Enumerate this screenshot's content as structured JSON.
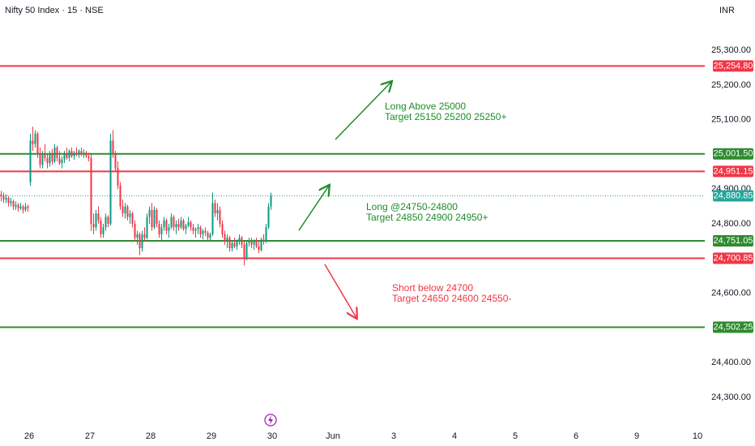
{
  "chart_data": {
    "type": "candlestick",
    "title": "Nifty 50 Index · 15 · NSE",
    "currency": "INR",
    "ylim": [
      24230,
      25445
    ],
    "xlim": [
      0,
      290
    ],
    "grid": true,
    "up_color": "#089981",
    "down_color": "#f23645",
    "yticks": [
      {
        "value": 25300,
        "label": "25,300.00"
      },
      {
        "value": 25200,
        "label": "25,200.00"
      },
      {
        "value": 25100,
        "label": "25,100.00"
      },
      {
        "value": 24900,
        "label": "24,900.00"
      },
      {
        "value": 24800,
        "label": "24,800.00"
      },
      {
        "value": 24600,
        "label": "24,600.00"
      },
      {
        "value": 24400,
        "label": "24,400.00"
      },
      {
        "value": 24300,
        "label": "24,300.00"
      }
    ],
    "xticks": [
      {
        "value": 12,
        "label": "26"
      },
      {
        "value": 37,
        "label": "27"
      },
      {
        "value": 62,
        "label": "28"
      },
      {
        "value": 87,
        "label": "29"
      },
      {
        "value": 112,
        "label": "30"
      },
      {
        "value": 137,
        "label": "Jun"
      },
      {
        "value": 162,
        "label": "3"
      },
      {
        "value": 187,
        "label": "4"
      },
      {
        "value": 212,
        "label": "5"
      },
      {
        "value": 237,
        "label": "6"
      },
      {
        "value": 262,
        "label": "9"
      },
      {
        "value": 287,
        "label": "10"
      }
    ],
    "levels": [
      {
        "value": 25254.8,
        "label": "25,254.80",
        "color": "#f23645"
      },
      {
        "value": 25001.5,
        "label": "25,001.50",
        "color": "#2e8b2e"
      },
      {
        "value": 24951.15,
        "label": "24,951.15",
        "color": "#f23645"
      },
      {
        "value": 24751.05,
        "label": "24,751.05",
        "color": "#2e8b2e"
      },
      {
        "value": 24700.85,
        "label": "24,700.85",
        "color": "#f23645"
      },
      {
        "value": 24502.25,
        "label": "24,502.25",
        "color": "#2e8b2e"
      }
    ],
    "last_price": {
      "value": 24880.85,
      "label": "24,880.85",
      "color": "#26a69a"
    },
    "annotations": [
      {
        "lines": [
          "Long Above 25000",
          "Target 25150 25200 25250+"
        ],
        "color": "#1e8c2a"
      },
      {
        "lines": [
          "Long @24750-24800",
          "Target 24850 24900 24950+"
        ],
        "color": "#1e8c2a"
      },
      {
        "lines": [
          "Short below 24700",
          "Target 24650 24600 24550-"
        ],
        "color": "#f23645"
      }
    ],
    "candles": [
      [
        24885,
        24895,
        24865,
        24880
      ],
      [
        24880,
        24890,
        24860,
        24870
      ],
      [
        24870,
        24885,
        24860,
        24875
      ],
      [
        24875,
        24880,
        24850,
        24860
      ],
      [
        24860,
        24875,
        24850,
        24865
      ],
      [
        24865,
        24870,
        24840,
        24850
      ],
      [
        24850,
        24865,
        24840,
        24855
      ],
      [
        24855,
        24860,
        24835,
        24845
      ],
      [
        24845,
        24860,
        24840,
        24850
      ],
      [
        24850,
        24855,
        24830,
        24840
      ],
      [
        24840,
        24860,
        24835,
        24850
      ],
      [
        24850,
        24855,
        24835,
        24845
      ],
      [
        24920,
        25060,
        24910,
        25040
      ],
      [
        25040,
        25080,
        25010,
        25030
      ],
      [
        25030,
        25070,
        25020,
        25060
      ],
      [
        25060,
        25065,
        24990,
        25000
      ],
      [
        25000,
        25020,
        24960,
        24970
      ],
      [
        24970,
        25010,
        24960,
        25000
      ],
      [
        25000,
        25030,
        24980,
        24990
      ],
      [
        24990,
        25000,
        24960,
        24975
      ],
      [
        24975,
        25010,
        24965,
        25000
      ],
      [
        25000,
        25015,
        24970,
        24980
      ],
      [
        24980,
        25030,
        24975,
        25020
      ],
      [
        25020,
        25025,
        24980,
        24990
      ],
      [
        24990,
        25010,
        24970,
        24975
      ],
      [
        24975,
        24995,
        24960,
        24985
      ],
      [
        24985,
        25010,
        24975,
        25000
      ],
      [
        25000,
        25020,
        24985,
        24990
      ],
      [
        24990,
        25015,
        24980,
        25010
      ],
      [
        25010,
        25020,
        24990,
        24995
      ],
      [
        24995,
        25010,
        24985,
        25005
      ],
      [
        25005,
        25020,
        24995,
        25000
      ],
      [
        25000,
        25015,
        24990,
        25010
      ],
      [
        25010,
        25020,
        24995,
        25000
      ],
      [
        25000,
        25015,
        24990,
        25005
      ],
      [
        25005,
        25010,
        24990,
        24995
      ],
      [
        24995,
        25005,
        24980,
        24990
      ],
      [
        24990,
        25000,
        24780,
        24800
      ],
      [
        24800,
        24830,
        24770,
        24790
      ],
      [
        24790,
        24840,
        24780,
        24830
      ],
      [
        24830,
        24850,
        24800,
        24810
      ],
      [
        24810,
        24820,
        24760,
        24770
      ],
      [
        24770,
        24800,
        24760,
        24790
      ],
      [
        24790,
        24830,
        24780,
        24820
      ],
      [
        24820,
        24825,
        24790,
        24800
      ],
      [
        24800,
        25060,
        24795,
        25040
      ],
      [
        25040,
        25070,
        24990,
        25000
      ],
      [
        25000,
        25010,
        24950,
        24960
      ],
      [
        24960,
        24980,
        24900,
        24910
      ],
      [
        24910,
        24920,
        24840,
        24850
      ],
      [
        24850,
        24870,
        24820,
        24830
      ],
      [
        24830,
        24860,
        24815,
        24850
      ],
      [
        24850,
        24855,
        24810,
        24820
      ],
      [
        24820,
        24840,
        24800,
        24830
      ],
      [
        24830,
        24835,
        24790,
        24800
      ],
      [
        24800,
        24810,
        24750,
        24760
      ],
      [
        24760,
        24780,
        24740,
        24770
      ],
      [
        24770,
        24775,
        24710,
        24730
      ],
      [
        24730,
        24780,
        24720,
        24770
      ],
      [
        24770,
        24790,
        24750,
        24760
      ],
      [
        24760,
        24830,
        24755,
        24820
      ],
      [
        24820,
        24850,
        24800,
        24840
      ],
      [
        24840,
        24860,
        24780,
        24790
      ],
      [
        24790,
        24850,
        24785,
        24840
      ],
      [
        24840,
        24845,
        24790,
        24800
      ],
      [
        24800,
        24810,
        24760,
        24770
      ],
      [
        24770,
        24800,
        24750,
        24790
      ],
      [
        24790,
        24820,
        24780,
        24810
      ],
      [
        24810,
        24815,
        24770,
        24780
      ],
      [
        24780,
        24800,
        24760,
        24790
      ],
      [
        24790,
        24830,
        24785,
        24820
      ],
      [
        24820,
        24825,
        24780,
        24790
      ],
      [
        24790,
        24810,
        24770,
        24800
      ],
      [
        24800,
        24815,
        24780,
        24790
      ],
      [
        24790,
        24820,
        24785,
        24810
      ],
      [
        24810,
        24815,
        24780,
        24785
      ],
      [
        24785,
        24800,
        24770,
        24795
      ],
      [
        24795,
        24820,
        24790,
        24805
      ],
      [
        24805,
        24810,
        24780,
        24790
      ],
      [
        24790,
        24800,
        24770,
        24780
      ],
      [
        24780,
        24790,
        24760,
        24785
      ],
      [
        24785,
        24800,
        24770,
        24790
      ],
      [
        24790,
        24795,
        24760,
        24770
      ],
      [
        24770,
        24785,
        24755,
        24780
      ],
      [
        24780,
        24790,
        24765,
        24775
      ],
      [
        24775,
        24780,
        24750,
        24760
      ],
      [
        24760,
        24775,
        24750,
        24770
      ],
      [
        24770,
        24890,
        24765,
        24860
      ],
      [
        24860,
        24870,
        24820,
        24830
      ],
      [
        24830,
        24860,
        24810,
        24840
      ],
      [
        24840,
        24850,
        24790,
        24800
      ],
      [
        24800,
        24810,
        24760,
        24770
      ],
      [
        24770,
        24780,
        24740,
        24750
      ],
      [
        24750,
        24770,
        24730,
        24760
      ],
      [
        24760,
        24765,
        24720,
        24730
      ],
      [
        24730,
        24750,
        24720,
        24745
      ],
      [
        24745,
        24760,
        24730,
        24735
      ],
      [
        24735,
        24755,
        24725,
        24750
      ],
      [
        24750,
        24770,
        24740,
        24760
      ],
      [
        24760,
        24765,
        24730,
        24740
      ],
      [
        24740,
        24750,
        24680,
        24700
      ],
      [
        24700,
        24750,
        24695,
        24745
      ],
      [
        24745,
        24760,
        24735,
        24750
      ],
      [
        24750,
        24760,
        24730,
        24740
      ],
      [
        24740,
        24755,
        24725,
        24750
      ],
      [
        24750,
        24760,
        24730,
        24735
      ],
      [
        24735,
        24750,
        24715,
        24725
      ],
      [
        24725,
        24760,
        24720,
        24755
      ],
      [
        24755,
        24770,
        24740,
        24750
      ],
      [
        24750,
        24800,
        24745,
        24790
      ],
      [
        24790,
        24860,
        24785,
        24850
      ],
      [
        24850,
        24890,
        24840,
        24880.85
      ]
    ]
  }
}
